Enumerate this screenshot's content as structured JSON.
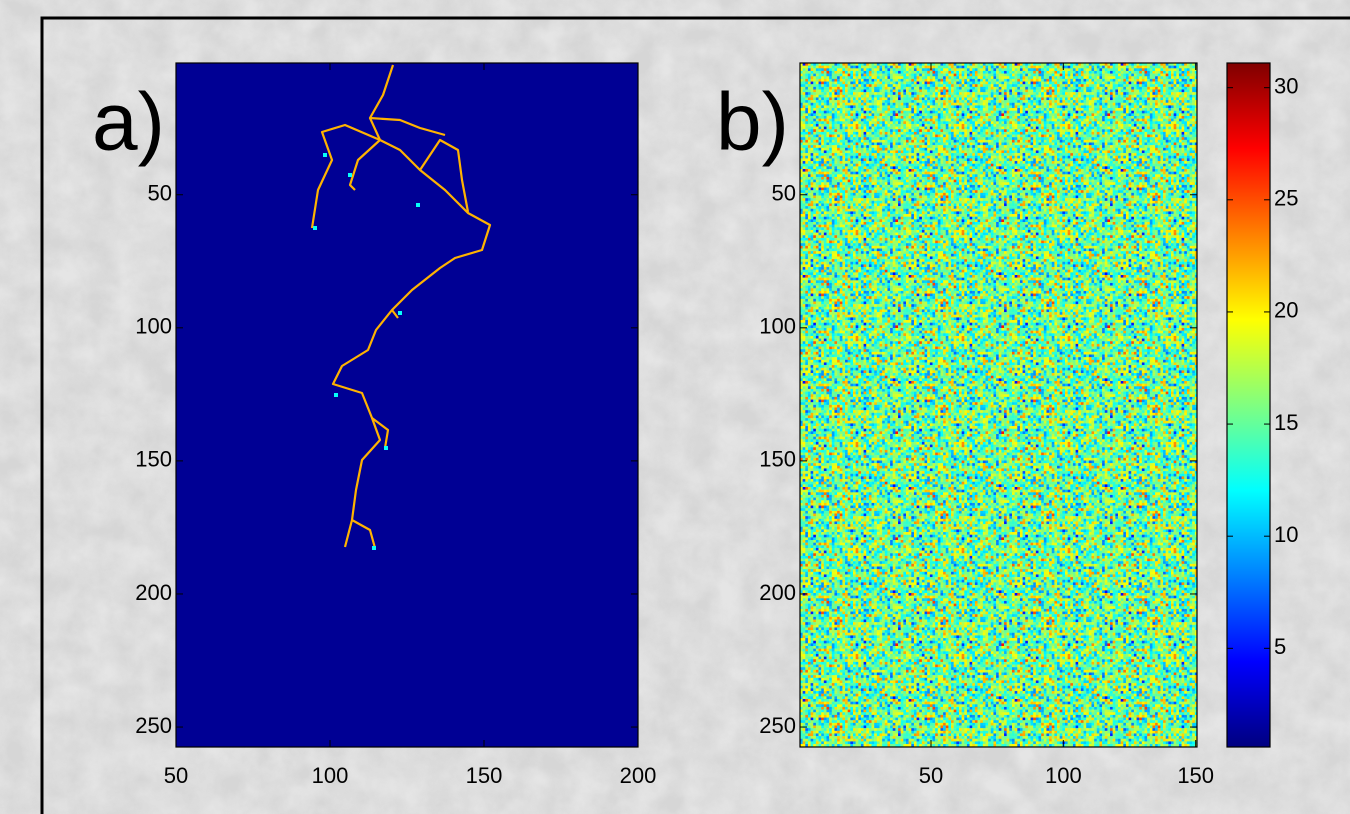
{
  "chart_data": [
    {
      "type": "image",
      "label": "a)",
      "colormap": "jet",
      "xlim": [
        50,
        200
      ],
      "xticks": [
        50,
        100,
        150,
        200
      ],
      "ylim": [
        257.5,
        0.5
      ],
      "yticks": [
        50,
        100,
        150,
        200,
        250
      ]
    },
    {
      "type": "image",
      "label": "b)",
      "colormap": "jet",
      "xlim": [
        0.5,
        150.5
      ],
      "xticks": [
        50,
        100,
        150
      ],
      "ylim": [
        257.5,
        0.5
      ],
      "yticks": [
        50,
        100,
        150,
        200,
        250
      ]
    },
    {
      "type": "colorbar",
      "colormap": "jet",
      "ylim": [
        0.6,
        31.1
      ],
      "yticks": [
        5,
        10,
        15,
        20,
        25,
        30
      ]
    }
  ]
}
